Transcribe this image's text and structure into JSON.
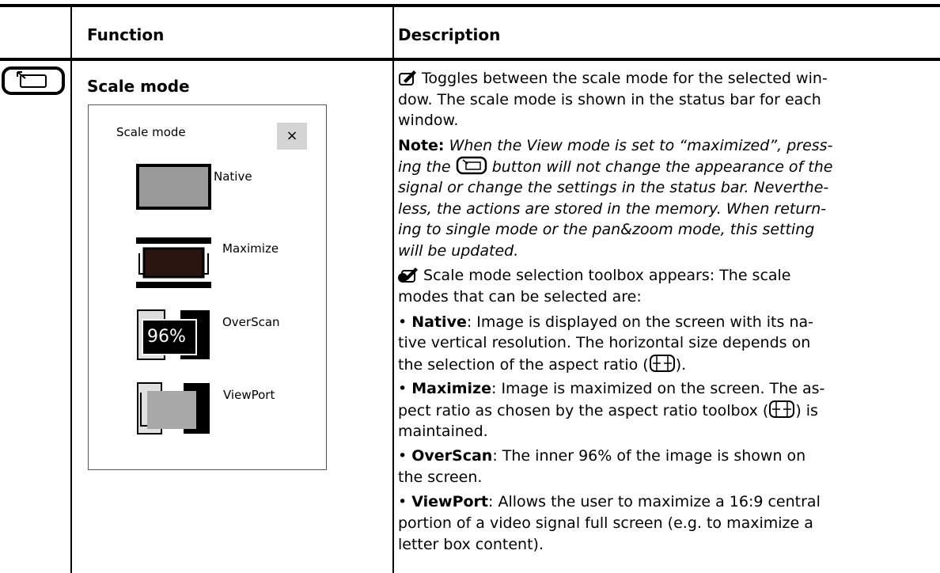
{
  "header": {
    "function": "Function",
    "description": "Description"
  },
  "row": {
    "function": "Scale mode",
    "toolbox": {
      "title": "Scale mode",
      "close": "×",
      "items": [
        {
          "label": "Native"
        },
        {
          "label": "Maximize"
        },
        {
          "label": "OverScan",
          "badge": "96%"
        },
        {
          "label": "ViewPort"
        }
      ]
    },
    "description": {
      "paragraphs": [
        [
          [
            {
              "icon": "pencil"
            },
            {
              "text": " Toggles between the scale mode for the selected win-"
            }
          ],
          [
            {
              "text": "dow. The scale mode is shown in the status bar for each"
            }
          ],
          [
            {
              "text": "window."
            }
          ]
        ],
        [
          [
            {
              "text": "Note:",
              "style": "bold"
            },
            {
              "text": " When the View mode is set to “maximized”, press-",
              "style": "italic"
            }
          ],
          [
            {
              "text": "ing the ",
              "style": "italic"
            },
            {
              "icon": "scale"
            },
            {
              "text": " button will not change the appearance of the",
              "style": "italic"
            }
          ],
          [
            {
              "text": "signal or change the settings in the status bar. Neverthe-",
              "style": "italic"
            }
          ],
          [
            {
              "text": "less, the actions are stored in the memory. When return-",
              "style": "italic"
            }
          ],
          [
            {
              "text": "ing to single mode or the pan&zoom mode, this setting",
              "style": "italic"
            }
          ],
          [
            {
              "text": "will be updated.",
              "style": "italic"
            }
          ]
        ],
        [
          [
            {
              "icon": "pencil-hold"
            },
            {
              "text": " Scale mode selection toolbox appears: The scale"
            }
          ],
          [
            {
              "text": "modes that can be selected are:"
            }
          ]
        ],
        [
          [
            {
              "text": "• "
            },
            {
              "text": "Native",
              "style": "bold"
            },
            {
              "text": ": Image is displayed on the screen with its na-"
            }
          ],
          [
            {
              "text": "tive vertical resolution. The horizontal size depends on"
            }
          ],
          [
            {
              "text": "the selection of the aspect ratio ("
            },
            {
              "icon": "aspect"
            },
            {
              "text": ")."
            }
          ]
        ],
        [
          [
            {
              "text": "• "
            },
            {
              "text": "Maximize",
              "style": "bold"
            },
            {
              "text": ": Image is maximized on the screen. The as-"
            }
          ],
          [
            {
              "text": "pect ratio as chosen by the aspect ratio toolbox ("
            },
            {
              "icon": "aspect"
            },
            {
              "text": ") is"
            }
          ],
          [
            {
              "text": "maintained."
            }
          ]
        ],
        [
          [
            {
              "text": "• "
            },
            {
              "text": "OverScan",
              "style": "bold"
            },
            {
              "text": ": The inner 96% of the image is shown on"
            }
          ],
          [
            {
              "text": "the screen."
            }
          ]
        ],
        [
          [
            {
              "text": "• "
            },
            {
              "text": "ViewPort",
              "style": "bold"
            },
            {
              "text": ": Allows the user to maximize a 16:9 central"
            }
          ],
          [
            {
              "text": "portion of a video signal full screen (e.g. to maximize a"
            }
          ],
          [
            {
              "text": "letter box content)."
            }
          ]
        ]
      ]
    }
  }
}
